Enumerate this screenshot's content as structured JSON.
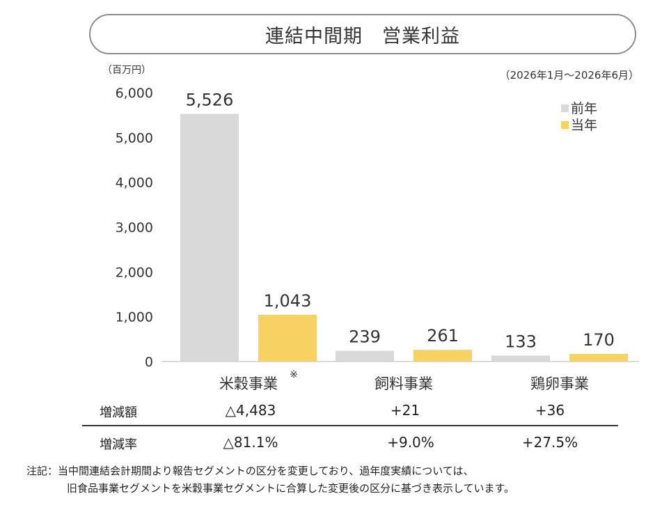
{
  "title": "連結中間期　営業利益",
  "unit_label": "（百万円）",
  "period_label": "（2026年1月～2026年6月）",
  "chart_data": {
    "type": "bar",
    "ylim": [
      0,
      6000
    ],
    "yticks": [
      0,
      1000,
      2000,
      3000,
      4000,
      5000,
      6000
    ],
    "ytick_labels": [
      "0",
      "1,000",
      "2,000",
      "3,000",
      "4,000",
      "5,000",
      "6,000"
    ],
    "categories": [
      "米穀事業",
      "飼料事業",
      "鶏卵事業"
    ],
    "category_marks": [
      "※",
      "",
      ""
    ],
    "series": [
      {
        "name": "前年",
        "color": "#d9d9d9",
        "values": [
          5526,
          239,
          133
        ],
        "labels": [
          "5,526",
          "239",
          "133"
        ]
      },
      {
        "name": "当年",
        "color": "#f7d262",
        "values": [
          1043,
          261,
          170
        ],
        "labels": [
          "1,043",
          "261",
          "170"
        ]
      }
    ],
    "legend_position": "top-right",
    "grid": false
  },
  "table": {
    "rows": [
      {
        "label": "増減額",
        "values": [
          "△4,483",
          "+21",
          "+36"
        ]
      },
      {
        "label": "増減率",
        "values": [
          "△81.1%",
          "+9.0%",
          "+27.5%"
        ]
      }
    ]
  },
  "note": {
    "line1": "注記：当中間連結会計期間より報告セグメントの区分を変更しており、過年度実績については、",
    "line2": "旧食品事業セグメントを米穀事業セグメントに合算した変更後の区分に基づき表示しています。"
  }
}
